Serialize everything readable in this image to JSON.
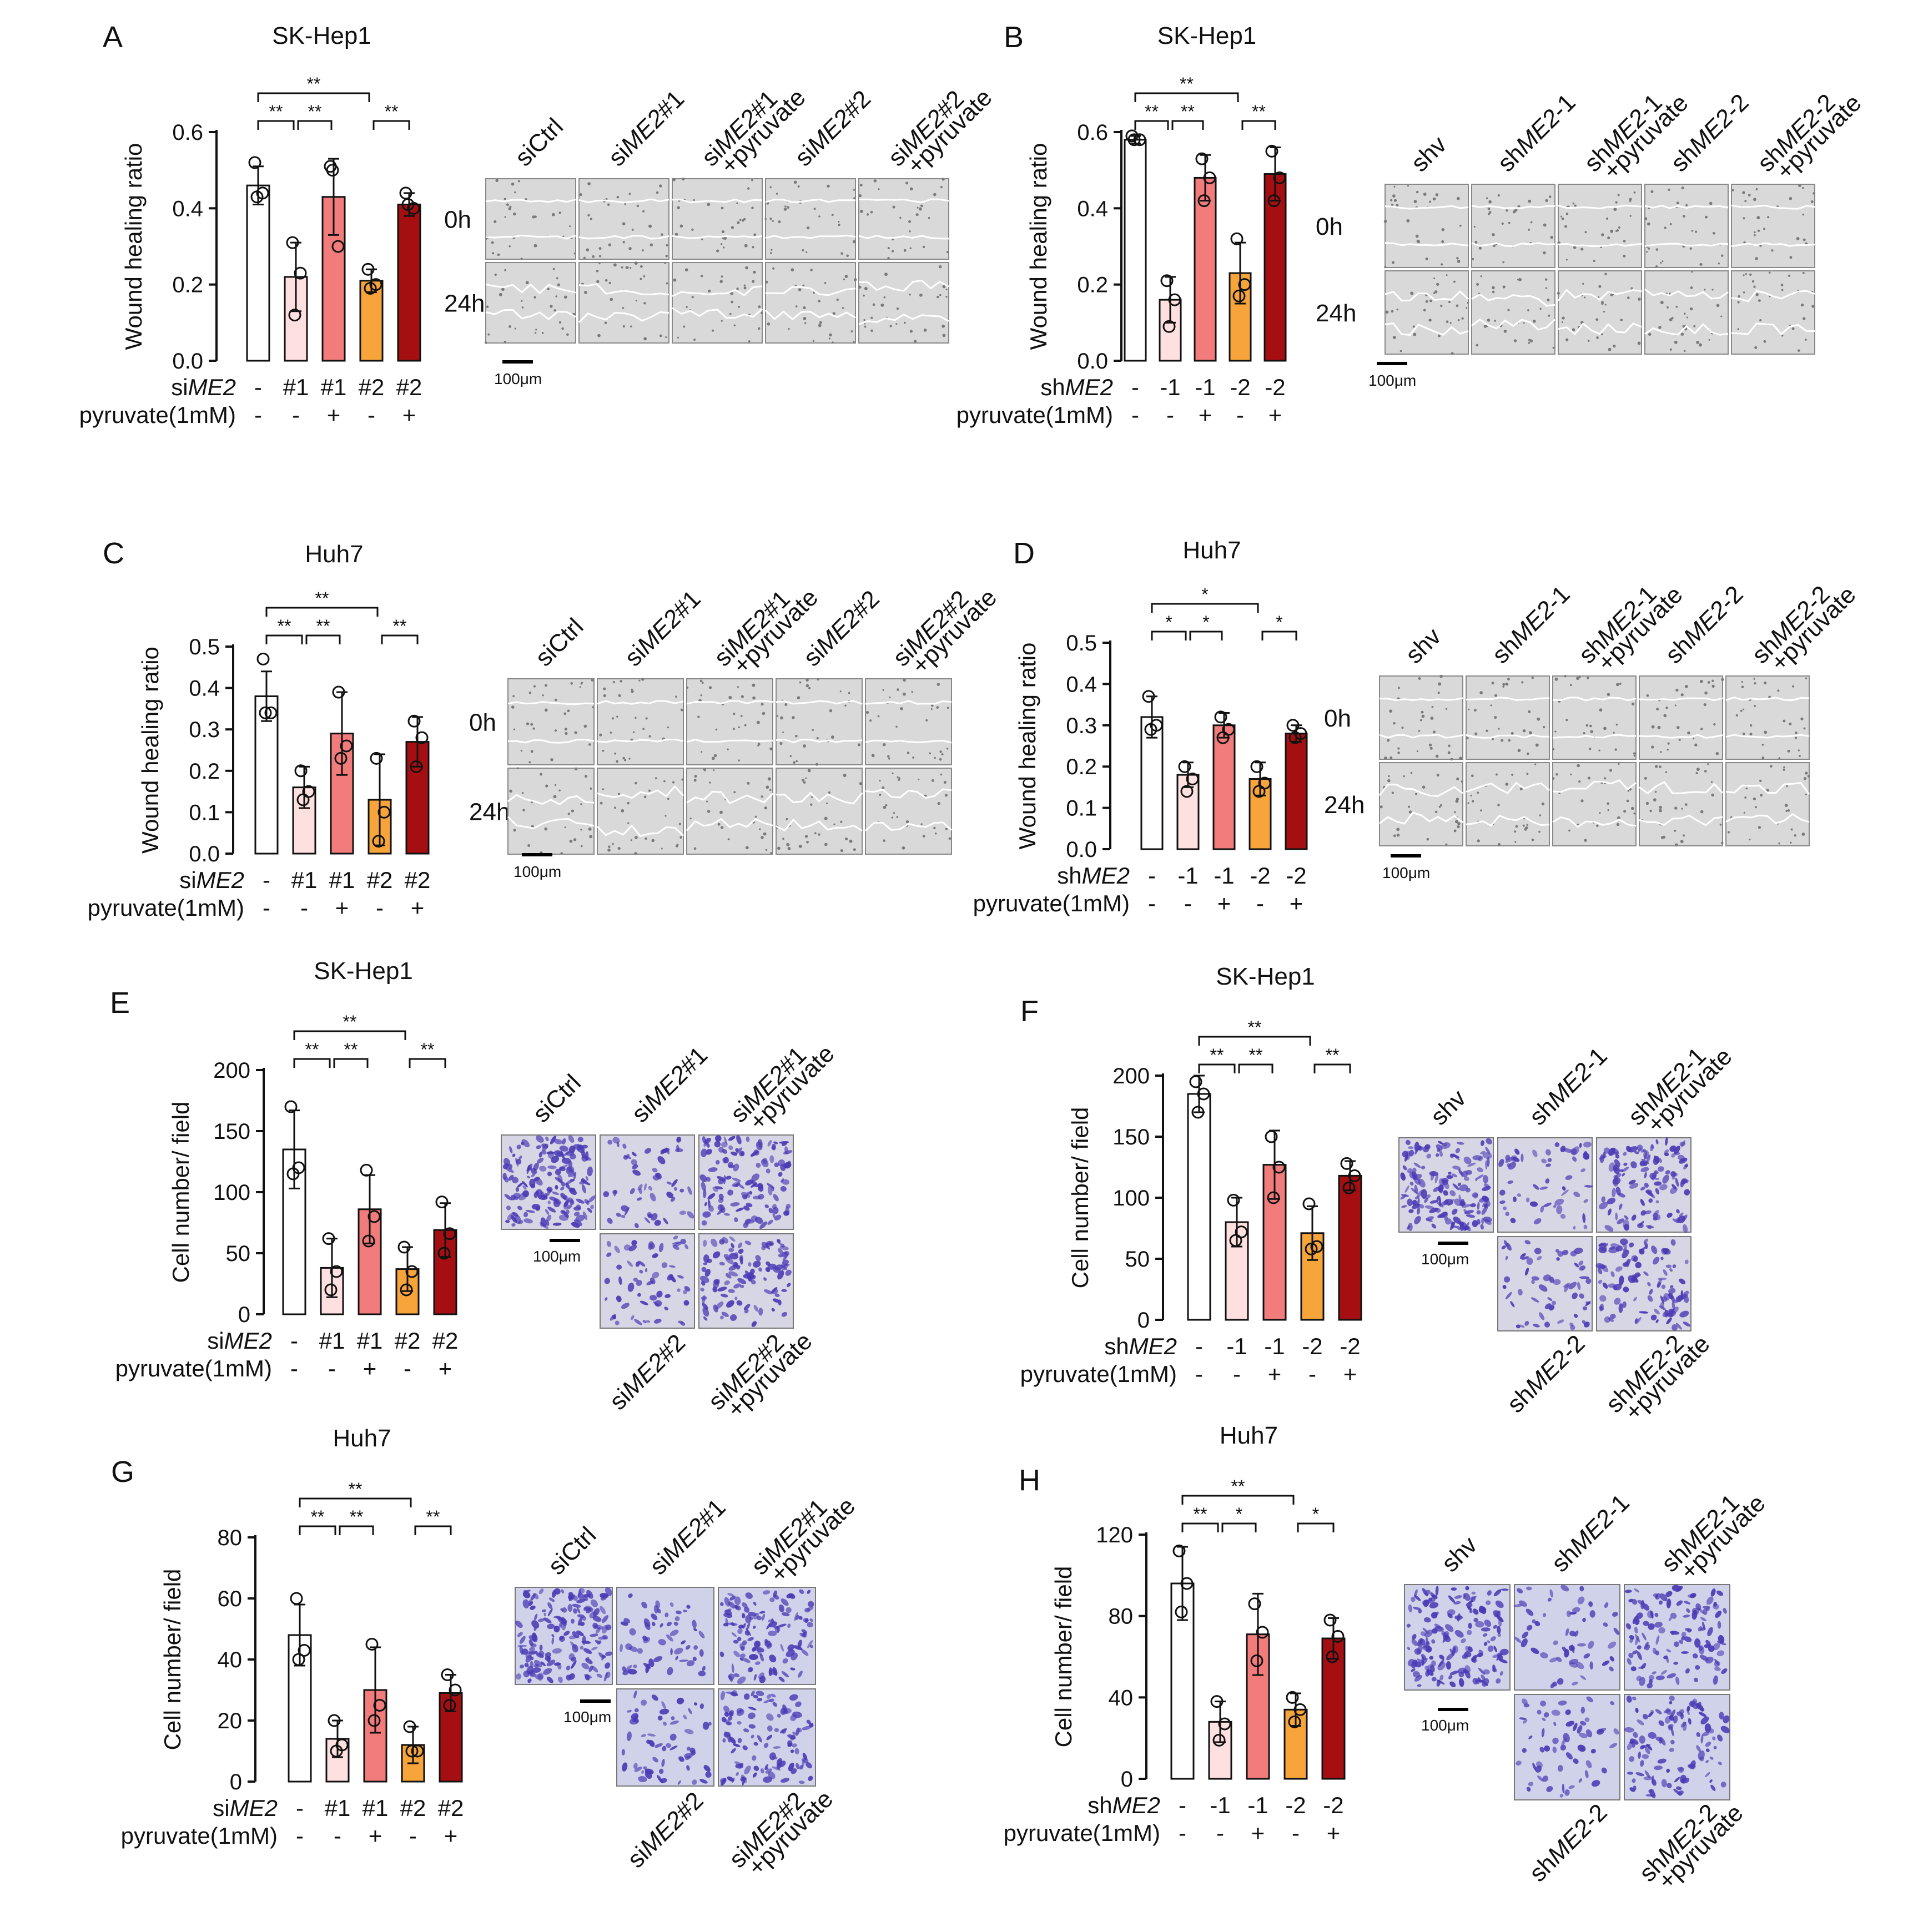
{
  "colors": {
    "ctrl": "#ffffff",
    "kd1": "#fde0df",
    "kd1_pyr": "#f27c7c",
    "kd2": "#f7a53a",
    "kd2_pyr": "#a50f12",
    "axis": "#111111",
    "wound_bg": "#d9d9d9",
    "crystal": "#4a3ab5",
    "transwell_bg": "#cfd2e8"
  },
  "chart_data": [
    {
      "panel": "A",
      "type": "bar",
      "title": "SK-Hep1",
      "ylabel": "Wound healing ratio",
      "ylim": [
        0,
        0.6
      ],
      "yticks": [
        "0.0",
        "0.2",
        "0.4",
        "0.6"
      ],
      "row1_label": "siME2",
      "row2_label": "pyruvate(1mM)",
      "categories": [
        "-",
        "#1",
        "#1",
        "#2",
        "#2"
      ],
      "pyruvate": [
        "-",
        "-",
        "+",
        "-",
        "+"
      ],
      "values": [
        0.46,
        0.22,
        0.43,
        0.21,
        0.41
      ],
      "errors": [
        0.05,
        0.09,
        0.1,
        0.03,
        0.03
      ],
      "points": [
        [
          0.52,
          0.44,
          0.43
        ],
        [
          0.31,
          0.23,
          0.12
        ],
        [
          0.51,
          0.3,
          0.5
        ],
        [
          0.24,
          0.2,
          0.19
        ],
        [
          0.44,
          0.4,
          0.41
        ]
      ],
      "significance": [
        {
          "from": 0,
          "to": 1,
          "label": "**"
        },
        {
          "from": 1,
          "to": 2,
          "label": "**"
        },
        {
          "from": 0,
          "to": 3,
          "label": "**"
        },
        {
          "from": 3,
          "to": 4,
          "label": "**"
        }
      ]
    },
    {
      "panel": "B",
      "type": "bar",
      "title": "SK-Hep1",
      "ylabel": "Wound healing ratio",
      "ylim": [
        0,
        0.6
      ],
      "yticks": [
        "0.0",
        "0.2",
        "0.4",
        "0.6"
      ],
      "row1_label": "shME2",
      "row2_label": "pyruvate(1mM)",
      "categories": [
        "-",
        "-1",
        "-1",
        "-2",
        "-2"
      ],
      "pyruvate": [
        "-",
        "-",
        "+",
        "-",
        "+"
      ],
      "values": [
        0.58,
        0.16,
        0.48,
        0.23,
        0.49
      ],
      "errors": [
        0.01,
        0.06,
        0.06,
        0.08,
        0.07
      ],
      "points": [
        [
          0.59,
          0.58,
          0.58
        ],
        [
          0.21,
          0.16,
          0.09
        ],
        [
          0.53,
          0.48,
          0.42
        ],
        [
          0.32,
          0.2,
          0.17
        ],
        [
          0.55,
          0.48,
          0.42
        ]
      ],
      "significance": [
        {
          "from": 0,
          "to": 1,
          "label": "**"
        },
        {
          "from": 1,
          "to": 2,
          "label": "**"
        },
        {
          "from": 0,
          "to": 3,
          "label": "**"
        },
        {
          "from": 3,
          "to": 4,
          "label": "**"
        }
      ]
    },
    {
      "panel": "C",
      "type": "bar",
      "title": "Huh7",
      "ylabel": "Wound healing ratio",
      "ylim": [
        0,
        0.5
      ],
      "yticks": [
        "0.0",
        "0.1",
        "0.2",
        "0.3",
        "0.4",
        "0.5"
      ],
      "row1_label": "siME2",
      "row2_label": "pyruvate(1mM)",
      "categories": [
        "-",
        "#1",
        "#1",
        "#2",
        "#2"
      ],
      "pyruvate": [
        "-",
        "-",
        "+",
        "-",
        "+"
      ],
      "values": [
        0.38,
        0.16,
        0.29,
        0.13,
        0.27
      ],
      "errors": [
        0.06,
        0.05,
        0.1,
        0.11,
        0.06
      ],
      "points": [
        [
          0.47,
          0.34,
          0.34
        ],
        [
          0.2,
          0.15,
          0.13
        ],
        [
          0.39,
          0.26,
          0.23
        ],
        [
          0.23,
          0.1,
          0.03
        ],
        [
          0.32,
          0.28,
          0.21
        ]
      ],
      "significance": [
        {
          "from": 0,
          "to": 1,
          "label": "**"
        },
        {
          "from": 1,
          "to": 2,
          "label": "**"
        },
        {
          "from": 0,
          "to": 3,
          "label": "**"
        },
        {
          "from": 3,
          "to": 4,
          "label": "**"
        }
      ]
    },
    {
      "panel": "D",
      "type": "bar",
      "title": "Huh7",
      "ylabel": "Wound healing ratio",
      "ylim": [
        0,
        0.5
      ],
      "yticks": [
        "0.0",
        "0.1",
        "0.2",
        "0.3",
        "0.4",
        "0.5"
      ],
      "row1_label": "shME2",
      "row2_label": "pyruvate(1mM)",
      "categories": [
        "-",
        "-1",
        "-1",
        "-2",
        "-2"
      ],
      "pyruvate": [
        "-",
        "-",
        "+",
        "-",
        "+"
      ],
      "values": [
        0.32,
        0.18,
        0.3,
        0.17,
        0.28
      ],
      "errors": [
        0.05,
        0.03,
        0.03,
        0.04,
        0.02
      ],
      "points": [
        [
          0.37,
          0.3,
          0.29
        ],
        [
          0.2,
          0.17,
          0.14
        ],
        [
          0.32,
          0.29,
          0.27
        ],
        [
          0.2,
          0.16,
          0.14
        ],
        [
          0.3,
          0.28,
          0.27
        ]
      ],
      "significance": [
        {
          "from": 0,
          "to": 1,
          "label": "*"
        },
        {
          "from": 1,
          "to": 2,
          "label": "*"
        },
        {
          "from": 0,
          "to": 3,
          "label": "*"
        },
        {
          "from": 3,
          "to": 4,
          "label": "*"
        }
      ]
    },
    {
      "panel": "E",
      "type": "bar",
      "title": "SK-Hep1",
      "ylabel": "Cell number/ field",
      "ylim": [
        0,
        200
      ],
      "yticks": [
        "0",
        "50",
        "100",
        "150",
        "200"
      ],
      "row1_label": "siME2",
      "row2_label": "pyruvate(1mM)",
      "categories": [
        "-",
        "#1",
        "#1",
        "#2",
        "#2"
      ],
      "pyruvate": [
        "-",
        "-",
        "+",
        "-",
        "+"
      ],
      "values": [
        135,
        38,
        86,
        37,
        69
      ],
      "errors": [
        32,
        24,
        28,
        18,
        22
      ],
      "points": [
        [
          170,
          120,
          115
        ],
        [
          62,
          35,
          20
        ],
        [
          118,
          80,
          60
        ],
        [
          55,
          35,
          20
        ],
        [
          92,
          66,
          50
        ]
      ],
      "significance": [
        {
          "from": 0,
          "to": 1,
          "label": "**"
        },
        {
          "from": 1,
          "to": 2,
          "label": "**"
        },
        {
          "from": 0,
          "to": 3,
          "label": "**"
        },
        {
          "from": 3,
          "to": 4,
          "label": "**"
        }
      ]
    },
    {
      "panel": "F",
      "type": "bar",
      "title": "SK-Hep1",
      "ylabel": "Cell number/ field",
      "ylim": [
        0,
        200
      ],
      "yticks": [
        "0",
        "50",
        "100",
        "150",
        "200"
      ],
      "row1_label": "shME2",
      "row2_label": "pyruvate(1mM)",
      "categories": [
        "-",
        "-1",
        "-1",
        "-2",
        "-2"
      ],
      "pyruvate": [
        "-",
        "-",
        "+",
        "-",
        "+"
      ],
      "values": [
        185,
        80,
        127,
        71,
        118
      ],
      "errors": [
        15,
        20,
        28,
        22,
        12
      ],
      "points": [
        [
          195,
          185,
          170
        ],
        [
          98,
          72,
          65
        ],
        [
          150,
          125,
          100
        ],
        [
          95,
          60,
          58
        ],
        [
          128,
          118,
          108
        ]
      ],
      "significance": [
        {
          "from": 0,
          "to": 1,
          "label": "**"
        },
        {
          "from": 1,
          "to": 2,
          "label": "**"
        },
        {
          "from": 0,
          "to": 3,
          "label": "**"
        },
        {
          "from": 3,
          "to": 4,
          "label": "**"
        }
      ]
    },
    {
      "panel": "G",
      "type": "bar",
      "title": "Huh7",
      "ylabel": "Cell number/ field",
      "ylim": [
        0,
        80
      ],
      "yticks": [
        "0",
        "20",
        "40",
        "60",
        "80"
      ],
      "row1_label": "siME2",
      "row2_label": "pyruvate(1mM)",
      "categories": [
        "-",
        "#1",
        "#1",
        "#2",
        "#2"
      ],
      "pyruvate": [
        "-",
        "-",
        "+",
        "-",
        "+"
      ],
      "values": [
        48,
        14,
        30,
        12,
        29
      ],
      "errors": [
        10,
        6,
        14,
        6,
        6
      ],
      "points": [
        [
          60,
          43,
          40
        ],
        [
          20,
          12,
          10
        ],
        [
          45,
          25,
          20
        ],
        [
          18,
          10,
          10
        ],
        [
          35,
          30,
          25
        ]
      ],
      "significance": [
        {
          "from": 0,
          "to": 1,
          "label": "**"
        },
        {
          "from": 1,
          "to": 2,
          "label": "**"
        },
        {
          "from": 0,
          "to": 3,
          "label": "**"
        },
        {
          "from": 3,
          "to": 4,
          "label": "**"
        }
      ]
    },
    {
      "panel": "H",
      "type": "bar",
      "title": "Huh7",
      "ylabel": "Cell number/ field",
      "ylim": [
        0,
        120
      ],
      "yticks": [
        "0",
        "40",
        "80",
        "120"
      ],
      "row1_label": "shME2",
      "row2_label": "pyruvate(1mM)",
      "categories": [
        "-",
        "-1",
        "-1",
        "-2",
        "-2"
      ],
      "pyruvate": [
        "-",
        "-",
        "+",
        "-",
        "+"
      ],
      "values": [
        96,
        28,
        71,
        34,
        69
      ],
      "errors": [
        18,
        10,
        20,
        8,
        10
      ],
      "points": [
        [
          112,
          96,
          82
        ],
        [
          38,
          27,
          19
        ],
        [
          86,
          72,
          58
        ],
        [
          40,
          34,
          28
        ],
        [
          78,
          70,
          60
        ]
      ],
      "significance": [
        {
          "from": 0,
          "to": 1,
          "label": "**"
        },
        {
          "from": 1,
          "to": 2,
          "label": "*"
        },
        {
          "from": 0,
          "to": 3,
          "label": "**"
        },
        {
          "from": 3,
          "to": 4,
          "label": "*"
        }
      ]
    }
  ],
  "images": {
    "A": {
      "conditions": [
        "siCtrl",
        "siME2#1",
        "siME2#1 +pyruvate",
        "siME2#2",
        "siME2#2 +pyruvate"
      ],
      "timepoints": [
        "0h",
        "24h"
      ],
      "scale": "100μm"
    },
    "B": {
      "conditions": [
        "shv",
        "shME2-1",
        "shME2-1 +pyruvate",
        "shME2-2",
        "shME2-2 +pyruvate"
      ],
      "timepoints": [
        "0h",
        "24h"
      ],
      "scale": "100μm"
    },
    "C": {
      "conditions": [
        "siCtrl",
        "siME2#1",
        "siME2#1 +pyruvate",
        "siME2#2",
        "siME2#2 +pyruvate"
      ],
      "timepoints": [
        "0h",
        "24h"
      ],
      "scale": "100μm"
    },
    "D": {
      "conditions": [
        "shv",
        "shME2-1",
        "shME2-1 +pyruvate",
        "shME2-2",
        "shME2-2 +pyruvate"
      ],
      "timepoints": [
        "0h",
        "24h"
      ],
      "scale": "100μm"
    },
    "E": {
      "top": [
        "siCtrl",
        "siME2#1",
        "siME2#1 +pyruvate"
      ],
      "bottom": [
        "siME2#2",
        "siME2#2 +pyruvate"
      ],
      "scale": "100μm"
    },
    "F": {
      "top": [
        "shv",
        "shME2-1",
        "shME2-1 +pyruvate"
      ],
      "bottom": [
        "shME2-2",
        "shME2-2 +pyruvate"
      ],
      "scale": "100μm"
    },
    "G": {
      "top": [
        "siCtrl",
        "siME2#1",
        "siME2#1 +pyruvate"
      ],
      "bottom": [
        "siME2#2",
        "siME2#2 +pyruvate"
      ],
      "scale": "100μm"
    },
    "H": {
      "top": [
        "shv",
        "shME2-1",
        "shME2-1 +pyruvate"
      ],
      "bottom": [
        "shME2-2",
        "shME2-2 +pyruvate"
      ],
      "scale": "100μm"
    }
  }
}
